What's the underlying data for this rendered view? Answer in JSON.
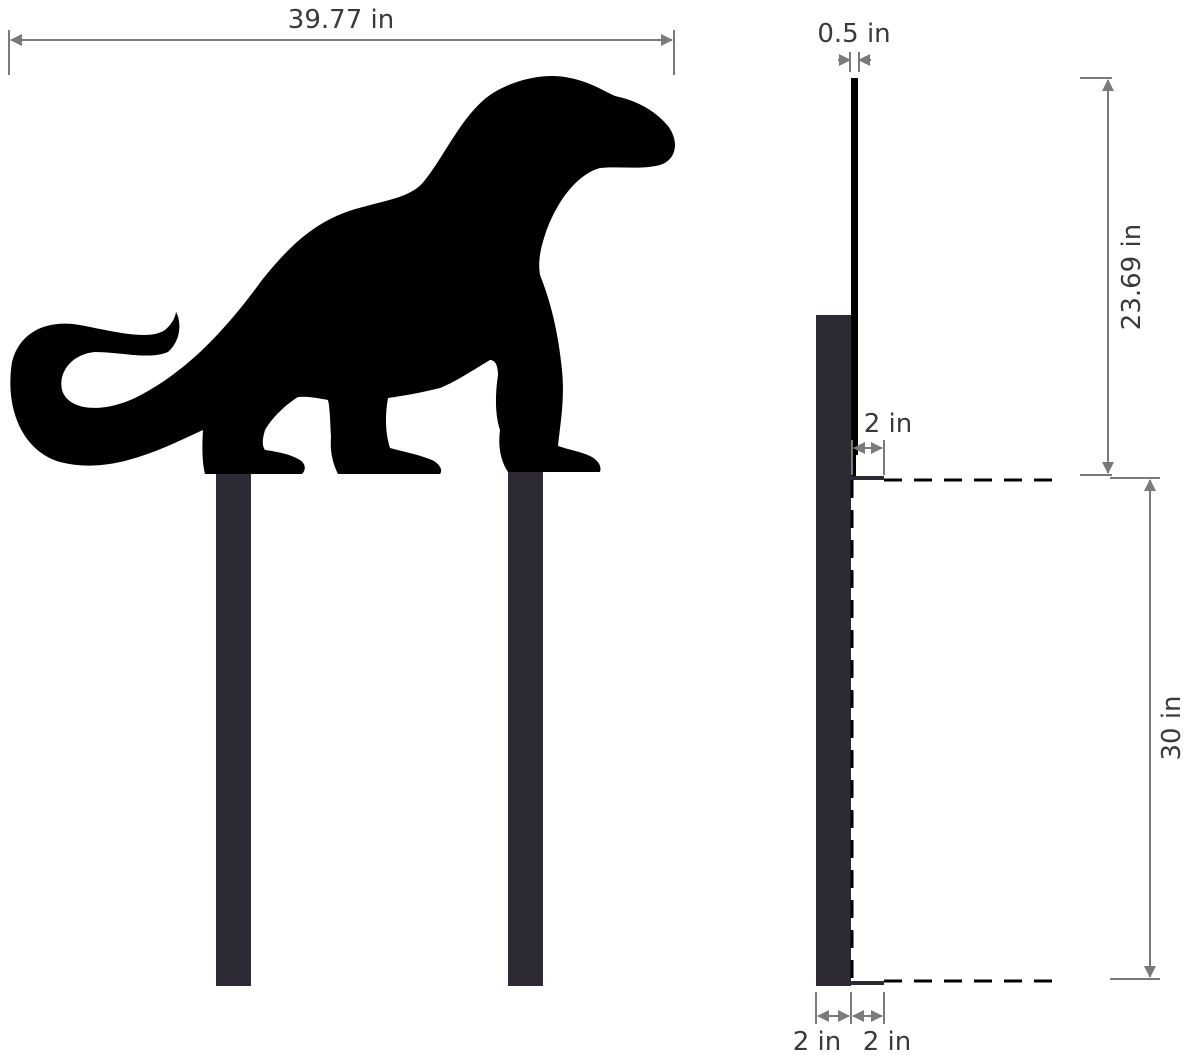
{
  "diagram": {
    "colors": {
      "silhouette": "#000000",
      "stake": "#2d2a36",
      "dimension_line": "#7a7a7a",
      "text": "#3a3a3a"
    },
    "front_view": {
      "width_label": "39.77 in",
      "silhouette_icon": "komodo-dragon-silhouette-icon"
    },
    "side_view": {
      "thickness_label": "0.5 in",
      "height_label": "23.69 in",
      "offset_label": "2 in",
      "stake_length_label": "30 in",
      "stake_width_label": "2 in",
      "stake_gap_label": "2 in"
    }
  }
}
